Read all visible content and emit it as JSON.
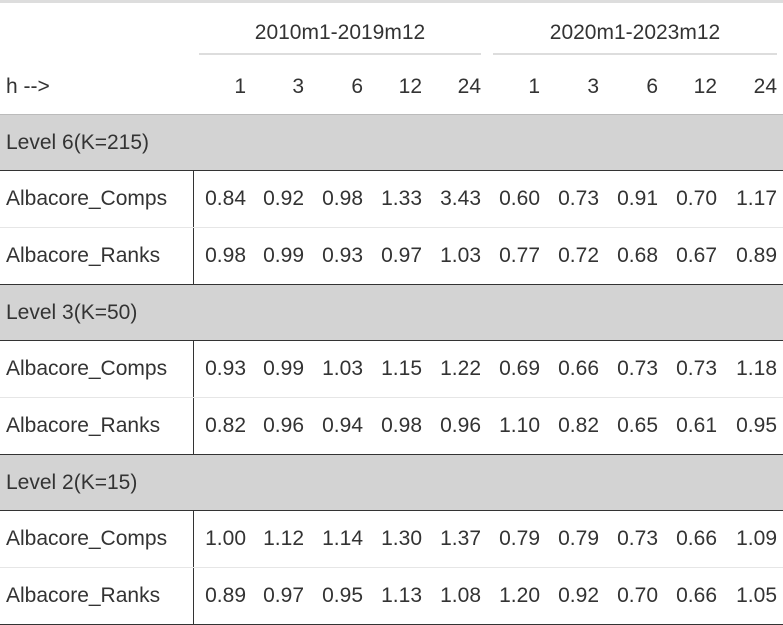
{
  "table": {
    "periods": [
      "2010m1-2019m12",
      "2020m1-2023m12"
    ],
    "horizon_label": "h -->",
    "horizons": [
      "1",
      "3",
      "6",
      "12",
      "24",
      "1",
      "3",
      "6",
      "12",
      "24"
    ],
    "groups": [
      {
        "label": "Level 6(K=215)",
        "rows": [
          {
            "name": "Albacore_Comps",
            "values": [
              "0.84",
              "0.92",
              "0.98",
              "1.33",
              "3.43",
              "0.60",
              "0.73",
              "0.91",
              "0.70",
              "1.17"
            ]
          },
          {
            "name": "Albacore_Ranks",
            "values": [
              "0.98",
              "0.99",
              "0.93",
              "0.97",
              "1.03",
              "0.77",
              "0.72",
              "0.68",
              "0.67",
              "0.89"
            ]
          }
        ]
      },
      {
        "label": "Level 3(K=50)",
        "rows": [
          {
            "name": "Albacore_Comps",
            "values": [
              "0.93",
              "0.99",
              "1.03",
              "1.15",
              "1.22",
              "0.69",
              "0.66",
              "0.73",
              "0.73",
              "1.18"
            ]
          },
          {
            "name": "Albacore_Ranks",
            "values": [
              "0.82",
              "0.96",
              "0.94",
              "0.98",
              "0.96",
              "1.10",
              "0.82",
              "0.65",
              "0.61",
              "0.95"
            ]
          }
        ]
      },
      {
        "label": "Level 2(K=15)",
        "rows": [
          {
            "name": "Albacore_Comps",
            "values": [
              "1.00",
              "1.12",
              "1.14",
              "1.30",
              "1.37",
              "0.79",
              "0.79",
              "0.73",
              "0.66",
              "1.09"
            ]
          },
          {
            "name": "Albacore_Ranks",
            "values": [
              "0.89",
              "0.97",
              "0.95",
              "1.13",
              "1.08",
              "1.20",
              "0.92",
              "0.70",
              "0.66",
              "1.05"
            ]
          }
        ]
      }
    ]
  }
}
